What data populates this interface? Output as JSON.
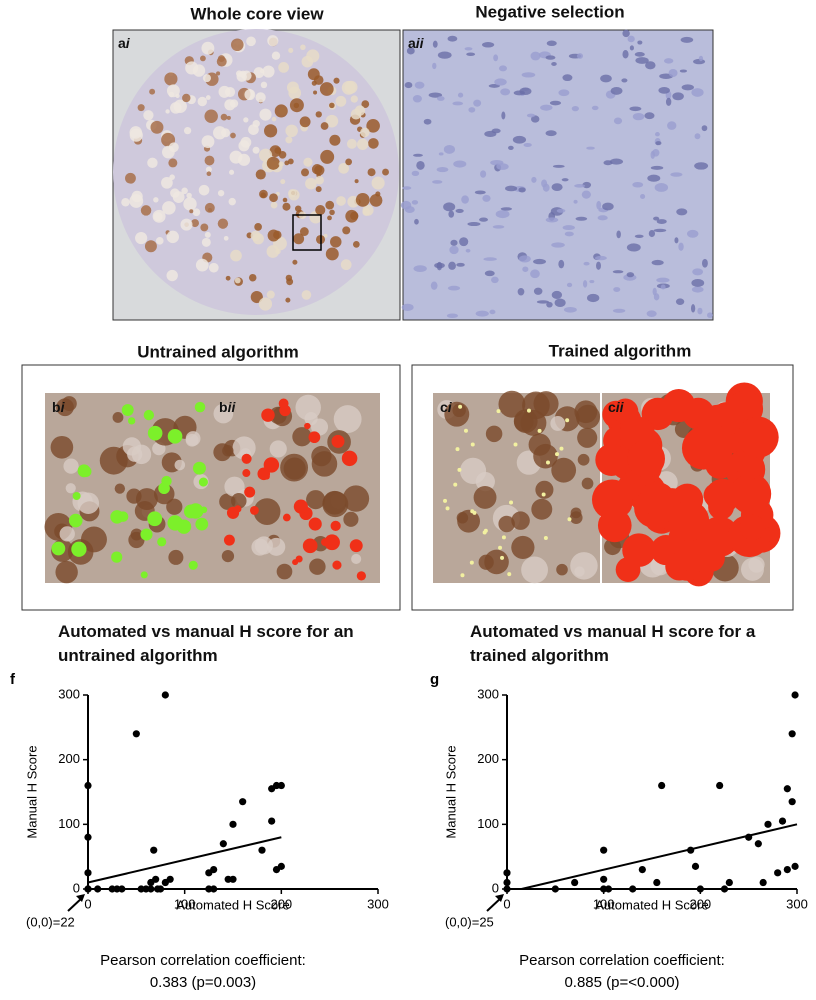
{
  "figure": {
    "top_titles": [
      "Whole core view",
      "Negative selection"
    ],
    "middle_titles": [
      "Untrained algorithm",
      "Trained algorithm"
    ],
    "panel_labels": [
      {
        "letter": "a",
        "roman": "i"
      },
      {
        "letter": "a",
        "roman": "ii"
      },
      {
        "letter": "b",
        "roman": "i"
      },
      {
        "letter": "b",
        "roman": "ii"
      },
      {
        "letter": "c",
        "roman": "i"
      },
      {
        "letter": "c",
        "roman": "ii"
      }
    ]
  },
  "chart_data": [
    {
      "type": "scatter",
      "panel": "f",
      "title": "Automated vs manual H score for an untrained algorithm",
      "x_label": "Automated H Score",
      "y_label": "Manual H Score",
      "x": [
        0,
        0,
        0,
        0,
        0,
        10,
        25,
        30,
        35,
        50,
        55,
        60,
        65,
        65,
        68,
        70,
        72,
        75,
        80,
        80,
        85,
        125,
        125,
        130,
        130,
        140,
        145,
        150,
        150,
        160,
        180,
        190,
        190,
        195,
        195,
        200,
        200
      ],
      "values": [
        160,
        80,
        25,
        0,
        0,
        0,
        0,
        0,
        0,
        240,
        0,
        0,
        0,
        10,
        60,
        15,
        0,
        0,
        300,
        10,
        15,
        0,
        25,
        30,
        0,
        70,
        15,
        15,
        100,
        135,
        60,
        105,
        155,
        30,
        160,
        35,
        160
      ],
      "fit": {
        "x": [
          0,
          200
        ],
        "y": [
          10,
          80
        ]
      },
      "color": "#000000",
      "xlim": [
        0,
        300
      ],
      "ylim": [
        0,
        300
      ],
      "xticks": [
        0,
        100,
        200,
        300
      ],
      "yticks": [
        0,
        100,
        200,
        300
      ],
      "origin_note": "(0,0)=22",
      "annotations": [
        "Pearson correlation coefficient:",
        "0.383 (p=0.003)"
      ]
    },
    {
      "type": "scatter",
      "panel": "g",
      "title": "Automated vs manual H score for a trained algorithm",
      "x_label": "Automated H Score",
      "y_label": "Manual H Score",
      "x": [
        0,
        0,
        0,
        50,
        70,
        100,
        100,
        100,
        105,
        130,
        140,
        155,
        160,
        190,
        195,
        200,
        220,
        225,
        230,
        250,
        260,
        265,
        270,
        280,
        285,
        290,
        290,
        295,
        295,
        298,
        298
      ],
      "values": [
        25,
        10,
        0,
        0,
        10,
        60,
        15,
        0,
        0,
        0,
        30,
        10,
        160,
        60,
        35,
        0,
        160,
        0,
        10,
        80,
        70,
        10,
        100,
        25,
        105,
        155,
        30,
        135,
        240,
        300,
        35
      ],
      "fit": {
        "x": [
          15,
          300
        ],
        "y": [
          0,
          100
        ]
      },
      "color": "#000000",
      "xlim": [
        0,
        300
      ],
      "ylim": [
        0,
        300
      ],
      "xticks": [
        0,
        100,
        200,
        300
      ],
      "yticks": [
        0,
        100,
        200,
        300
      ],
      "origin_note": "(0,0)=25",
      "annotations": [
        "Pearson correlation coefficient:",
        "0.885 (p=<0.000)"
      ]
    }
  ]
}
